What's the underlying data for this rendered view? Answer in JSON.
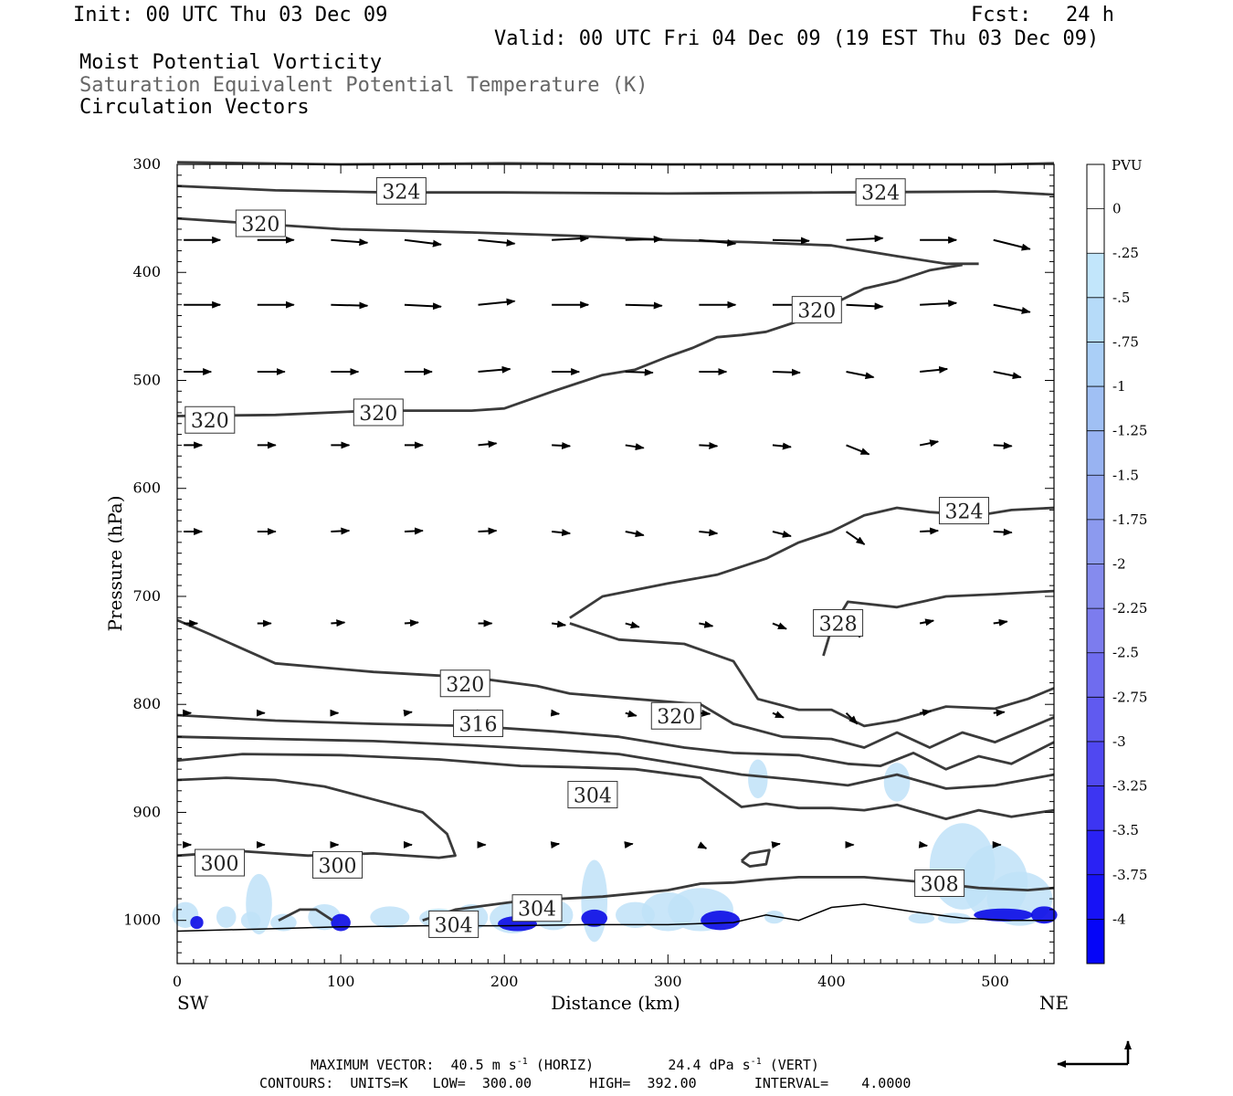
{
  "header": {
    "init": "Init: 00 UTC Thu 03 Dec 09",
    "fcst_label": "Fcst:",
    "fcst_value": "24 h",
    "valid": "Valid: 00 UTC Fri 04 Dec 09 (19 EST Thu 03 Dec 09)",
    "field1": "Moist Potential Vorticity",
    "field2": "Saturation Equivalent Potential Temperature (K)",
    "field3": "Circulation Vectors"
  },
  "footer": {
    "max_vector_label": "MAXIMUM VECTOR:",
    "max_horiz_value": "40.5",
    "max_horiz_unit": "m s",
    "max_horiz_tag": "(HORIZ)",
    "max_vert_value": "24.4",
    "max_vert_unit": "dPa s",
    "max_vert_tag": "(VERT)",
    "exponent": "-1",
    "contours_line": "CONTOURS:  UNITS=K   LOW=  300.00       HIGH=  392.00       INTERVAL=    4.0000"
  },
  "colors": {
    "contour": "#3a3a3a",
    "arrow": "#000000",
    "terrain": "#000000",
    "shade_light": "#bfe2f8",
    "shade_mid": "#9aa8f0",
    "shade_dark": "#0a0ae6"
  },
  "chart_data": {
    "type": "cross-section",
    "xlabel": "Distance (km)",
    "ylabel": "Pressure (hPa)",
    "xlim": [
      0,
      536
    ],
    "ylim": [
      1040,
      300
    ],
    "x_ticks": [
      0,
      100,
      200,
      300,
      400,
      500
    ],
    "y_ticks": [
      300,
      400,
      500,
      600,
      700,
      800,
      900,
      1000
    ],
    "left_end": "SW",
    "right_end": "NE",
    "colorbar": {
      "unit": "PVU",
      "labels": [
        "0",
        "-.25",
        "-.5",
        "-.75",
        "-1",
        "-1.25",
        "-1.5",
        "-1.75",
        "-2",
        "-2.25",
        "-2.5",
        "-2.75",
        "-3",
        "-3.25",
        "-3.5",
        "-3.75",
        "-4"
      ],
      "colors": [
        "#ffffff",
        "#ffffff",
        "#c2e6fb",
        "#b6dbf9",
        "#aacff7",
        "#a0c0f4",
        "#98b3f2",
        "#92a7f1",
        "#8c9aef",
        "#858bee",
        "#7c7cee",
        "#6f6cef",
        "#605af0",
        "#5048f1",
        "#3d35f2",
        "#2a22f4",
        "#1712f6",
        "#0505f8"
      ]
    },
    "contour_labels": [
      {
        "text": "324",
        "x": 137,
        "p": 325
      },
      {
        "text": "324",
        "x": 430,
        "p": 326
      },
      {
        "text": "320",
        "x": 51,
        "p": 355
      },
      {
        "text": "320",
        "x": 391,
        "p": 435
      },
      {
        "text": "320",
        "x": 20,
        "p": 537
      },
      {
        "text": "320",
        "x": 123,
        "p": 530
      },
      {
        "text": "324",
        "x": 481,
        "p": 621
      },
      {
        "text": "328",
        "x": 404,
        "p": 725
      },
      {
        "text": "320",
        "x": 176,
        "p": 781
      },
      {
        "text": "316",
        "x": 184,
        "p": 818
      },
      {
        "text": "320",
        "x": 305,
        "p": 811
      },
      {
        "text": "304",
        "x": 254,
        "p": 884
      },
      {
        "text": "300",
        "x": 26,
        "p": 947
      },
      {
        "text": "300",
        "x": 98,
        "p": 949
      },
      {
        "text": "304",
        "x": 220,
        "p": 989
      },
      {
        "text": "308",
        "x": 466,
        "p": 966
      },
      {
        "text": "304",
        "x": 169,
        "p": 1004
      }
    ],
    "contours": [
      {
        "points": [
          [
            0,
            320
          ],
          [
            60,
            324
          ],
          [
            130,
            326
          ],
          [
            200,
            326
          ],
          [
            300,
            327
          ],
          [
            400,
            326
          ],
          [
            500,
            325
          ],
          [
            536,
            328
          ]
        ]
      },
      {
        "points": [
          [
            0,
            298
          ],
          [
            100,
            300
          ],
          [
            200,
            299
          ],
          [
            300,
            300
          ],
          [
            400,
            300
          ],
          [
            500,
            300
          ],
          [
            536,
            299
          ]
        ]
      },
      {
        "points": [
          [
            0,
            350
          ],
          [
            40,
            354
          ],
          [
            100,
            360
          ],
          [
            180,
            363
          ],
          [
            240,
            366
          ],
          [
            300,
            370
          ],
          [
            350,
            372
          ],
          [
            400,
            375
          ],
          [
            440,
            385
          ],
          [
            470,
            392
          ],
          [
            490,
            392
          ]
        ]
      },
      {
        "points": [
          [
            0,
            533
          ],
          [
            60,
            532
          ],
          [
            120,
            528
          ],
          [
            180,
            528
          ],
          [
            200,
            526
          ],
          [
            230,
            510
          ],
          [
            260,
            495
          ],
          [
            280,
            490
          ],
          [
            300,
            478
          ],
          [
            315,
            470
          ],
          [
            330,
            460
          ],
          [
            345,
            458
          ],
          [
            360,
            455
          ],
          [
            380,
            445
          ],
          [
            400,
            430
          ],
          [
            420,
            415
          ],
          [
            440,
            408
          ],
          [
            460,
            398
          ],
          [
            480,
            393
          ]
        ]
      },
      {
        "points": [
          [
            240,
            720
          ],
          [
            260,
            700
          ],
          [
            300,
            688
          ],
          [
            330,
            680
          ],
          [
            360,
            665
          ],
          [
            380,
            650
          ],
          [
            400,
            640
          ],
          [
            420,
            625
          ],
          [
            440,
            618
          ],
          [
            460,
            622
          ],
          [
            490,
            625
          ],
          [
            510,
            620
          ],
          [
            536,
            618
          ]
        ]
      },
      {
        "points": [
          [
            240,
            725
          ],
          [
            270,
            740
          ],
          [
            310,
            744
          ],
          [
            340,
            760
          ],
          [
            355,
            795
          ],
          [
            380,
            805
          ],
          [
            400,
            805
          ],
          [
            420,
            820
          ],
          [
            440,
            815
          ],
          [
            470,
            802
          ],
          [
            500,
            804
          ],
          [
            520,
            795
          ],
          [
            536,
            785
          ]
        ]
      },
      {
        "points": [
          [
            395,
            755
          ],
          [
            400,
            730
          ],
          [
            410,
            705
          ],
          [
            440,
            710
          ],
          [
            470,
            700
          ],
          [
            500,
            698
          ],
          [
            536,
            695
          ]
        ]
      },
      {
        "points": [
          [
            0,
            722
          ],
          [
            20,
            735
          ],
          [
            60,
            762
          ],
          [
            120,
            770
          ],
          [
            180,
            775
          ],
          [
            220,
            783
          ],
          [
            240,
            790
          ],
          [
            280,
            795
          ],
          [
            320,
            800
          ],
          [
            340,
            818
          ],
          [
            370,
            830
          ],
          [
            400,
            832
          ],
          [
            420,
            840
          ],
          [
            440,
            826
          ],
          [
            460,
            840
          ],
          [
            480,
            826
          ],
          [
            500,
            835
          ],
          [
            536,
            812
          ]
        ]
      },
      {
        "points": [
          [
            0,
            810
          ],
          [
            60,
            815
          ],
          [
            120,
            818
          ],
          [
            180,
            820
          ],
          [
            230,
            825
          ],
          [
            270,
            830
          ],
          [
            310,
            840
          ],
          [
            340,
            845
          ],
          [
            380,
            847
          ],
          [
            410,
            855
          ],
          [
            430,
            857
          ],
          [
            450,
            845
          ],
          [
            470,
            860
          ],
          [
            490,
            848
          ],
          [
            510,
            855
          ],
          [
            536,
            835
          ]
        ]
      },
      {
        "points": [
          [
            0,
            830
          ],
          [
            60,
            832
          ],
          [
            120,
            834
          ],
          [
            180,
            838
          ],
          [
            230,
            842
          ],
          [
            270,
            846
          ],
          [
            310,
            856
          ],
          [
            345,
            865
          ],
          [
            380,
            870
          ],
          [
            410,
            875
          ],
          [
            440,
            865
          ],
          [
            470,
            878
          ],
          [
            500,
            875
          ],
          [
            536,
            865
          ]
        ]
      },
      {
        "points": [
          [
            0,
            852
          ],
          [
            40,
            846
          ],
          [
            100,
            847
          ],
          [
            160,
            851
          ],
          [
            210,
            857
          ],
          [
            240,
            858
          ],
          [
            280,
            860
          ],
          [
            320,
            868
          ],
          [
            345,
            895
          ],
          [
            360,
            892
          ],
          [
            380,
            896
          ],
          [
            400,
            896
          ],
          [
            420,
            898
          ],
          [
            440,
            893
          ],
          [
            470,
            906
          ],
          [
            490,
            898
          ],
          [
            510,
            904
          ],
          [
            536,
            898
          ]
        ]
      },
      {
        "points": [
          [
            0,
            940
          ],
          [
            40,
            936
          ],
          [
            80,
            940
          ],
          [
            120,
            938
          ],
          [
            160,
            942
          ],
          [
            170,
            940
          ],
          [
            165,
            920
          ],
          [
            150,
            900
          ],
          [
            120,
            888
          ],
          [
            90,
            876
          ],
          [
            60,
            870
          ],
          [
            30,
            868
          ],
          [
            0,
            870
          ]
        ]
      },
      {
        "points": [
          [
            150,
            1000
          ],
          [
            170,
            990
          ],
          [
            210,
            982
          ],
          [
            260,
            978
          ],
          [
            300,
            972
          ],
          [
            320,
            966
          ],
          [
            340,
            965
          ],
          [
            360,
            962
          ],
          [
            380,
            960
          ],
          [
            400,
            960
          ],
          [
            420,
            960
          ],
          [
            460,
            965
          ],
          [
            490,
            970
          ],
          [
            520,
            972
          ],
          [
            536,
            970
          ]
        ]
      },
      {
        "points": [
          [
            345,
            945
          ],
          [
            350,
            938
          ],
          [
            362,
            935
          ],
          [
            360,
            948
          ],
          [
            350,
            950
          ],
          [
            345,
            945
          ]
        ]
      },
      {
        "points": [
          [
            62,
            1000
          ],
          [
            75,
            990
          ],
          [
            85,
            990
          ],
          [
            95,
            1000
          ]
        ]
      }
    ],
    "vectors": {
      "columns_x": [
        0,
        45,
        90,
        135,
        180,
        225,
        270,
        315,
        360,
        405,
        450,
        495
      ],
      "levels": [
        {
          "p": 370,
          "u": [
            40,
            40,
            40,
            40,
            40,
            40,
            40,
            40,
            40,
            40,
            40,
            40
          ],
          "w": [
            0,
            0,
            3,
            5,
            4,
            -2,
            -1,
            4,
            1,
            -2,
            0,
            10
          ]
        },
        {
          "p": 430,
          "u": [
            40,
            40,
            40,
            40,
            40,
            40,
            40,
            40,
            40,
            40,
            40,
            40
          ],
          "w": [
            0,
            0,
            1,
            2,
            -4,
            0,
            1,
            0,
            0,
            2,
            -2,
            8
          ]
        },
        {
          "p": 492,
          "u": [
            30,
            30,
            30,
            30,
            35,
            30,
            30,
            30,
            30,
            30,
            30,
            30
          ],
          "w": [
            0,
            0,
            0,
            0,
            -3,
            0,
            1,
            0,
            1,
            6,
            -3,
            6
          ]
        },
        {
          "p": 560,
          "u": [
            20,
            20,
            20,
            20,
            20,
            20,
            20,
            20,
            20,
            25,
            20,
            20
          ],
          "w": [
            0,
            0,
            0,
            0,
            -2,
            1,
            3,
            1,
            2,
            10,
            -4,
            1
          ]
        },
        {
          "p": 640,
          "u": [
            20,
            20,
            20,
            20,
            20,
            20,
            20,
            20,
            20,
            20,
            20,
            20
          ],
          "w": [
            0,
            0,
            -1,
            -1,
            -1,
            2,
            4,
            2,
            5,
            14,
            -1,
            1
          ]
        },
        {
          "p": 725,
          "u": [
            15,
            15,
            15,
            15,
            15,
            15,
            15,
            15,
            15,
            15,
            15,
            15
          ],
          "w": [
            0,
            0,
            -1,
            -1,
            0,
            2,
            4,
            3,
            6,
            15,
            -3,
            -2
          ]
        },
        {
          "p": 808,
          "u": [
            8,
            8,
            8,
            8,
            8,
            8,
            12,
            12,
            12,
            12,
            12,
            12
          ],
          "w": [
            0,
            0,
            0,
            -1,
            0,
            1,
            3,
            1,
            5,
            12,
            -2,
            -1
          ]
        },
        {
          "p": 930,
          "u": [
            8,
            8,
            8,
            8,
            8,
            8,
            8,
            8,
            8,
            8,
            8,
            8
          ],
          "w": [
            0,
            0,
            0,
            0,
            0,
            -1,
            -1,
            4,
            -1,
            0,
            1,
            0
          ]
        }
      ]
    }
  }
}
